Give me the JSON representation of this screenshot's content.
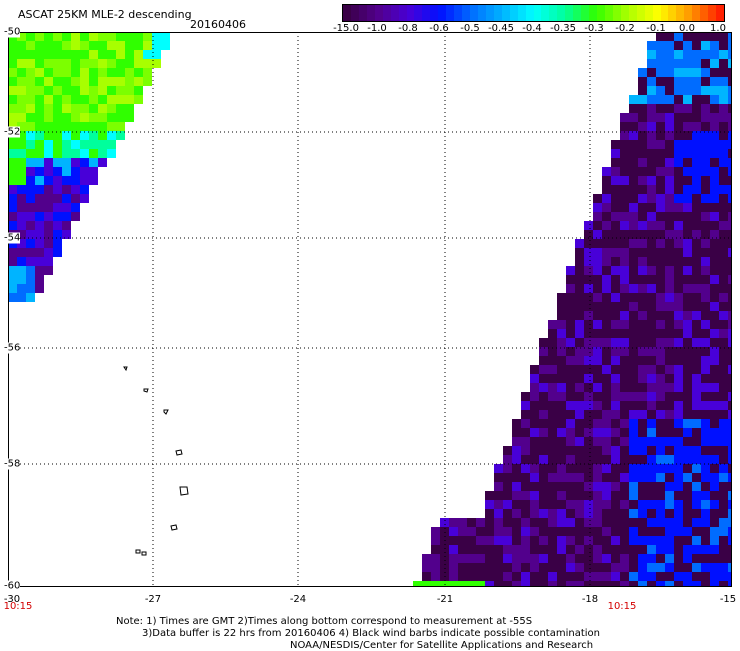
{
  "header": {
    "title": "ASCAT 25KM MLE-2 descending",
    "date": "20160406"
  },
  "colorbar": {
    "labels": [
      "-15.0",
      "-1.0",
      "-0.8",
      "-0.6",
      "-0.5",
      "-0.45",
      "-0.4",
      "-0.35",
      "-0.3",
      "-0.2",
      "-0.1",
      "0.0",
      "1.0"
    ],
    "colors": [
      "#3a0046",
      "#52008c",
      "#4800d8",
      "#0010ff",
      "#006cff",
      "#00b4ff",
      "#00ffff",
      "#00ff9c",
      "#30ff00",
      "#a8ff00",
      "#ffff00",
      "#ff9c00",
      "#ff2000"
    ]
  },
  "axes": {
    "x_ticks": [
      "-30",
      "-27",
      "-24",
      "-21",
      "-18",
      "-15"
    ],
    "y_ticks": [
      "-50",
      "-52",
      "-54",
      "-56",
      "-58",
      "-60"
    ],
    "grid": "dotted"
  },
  "times": [
    "10:15",
    "10:15"
  ],
  "notes": [
    "Note: 1) Times are GMT 2)Times along bottom correspond to measurement at -55S",
    "3)Data buffer is 22 hrs from 20160406 4) Black wind barbs indicate possible contamination",
    "NOAA/NESDIS/Center for Satellite Applications and Research"
  ]
}
